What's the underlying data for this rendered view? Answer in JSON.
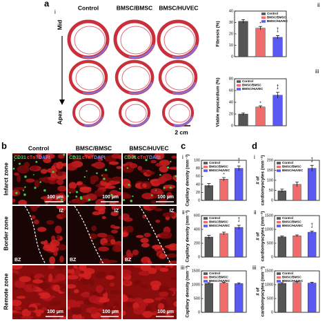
{
  "figure": {
    "panel_a": {
      "label": "a",
      "sublabel": "i",
      "columns": [
        "Control",
        "BMSC/BMSC",
        "BMSC/HUVEC"
      ],
      "axis_top": "Mid",
      "axis_bottom": "Apex",
      "scale_bar": "2 cm"
    },
    "panel_b": {
      "label": "b",
      "columns": [
        "Control",
        "BMSC/BMSC",
        "BMSC/HUVEC"
      ],
      "rows": [
        "Infarct zone",
        "Border zone",
        "Remote zone"
      ],
      "stain": [
        "CD31",
        "cTnT",
        "DAPI"
      ],
      "scale_bar": "100 µm",
      "zones": [
        "IZ",
        "BZ"
      ]
    },
    "panel_c": {
      "label": "c"
    },
    "panel_d": {
      "label": "d"
    }
  },
  "chart_data": [
    {
      "type": "bar",
      "panel": "ii",
      "y_label": [
        "Fibrosis (%)"
      ],
      "categories": [
        "Control",
        "BMSC/BMSC",
        "BMSC/HUVEC"
      ],
      "colors": [
        "#555555",
        "#f26b6b",
        "#5a5af2"
      ],
      "values": [
        31,
        25,
        17
      ],
      "errors": [
        1.5,
        1.5,
        1.5
      ],
      "significance": [
        null,
        [
          "*"
        ],
        [
          "†",
          "*"
        ]
      ],
      "ylim": [
        0,
        40
      ],
      "yticks": [
        0,
        10,
        20,
        30,
        40
      ]
    },
    {
      "type": "bar",
      "panel": "iii",
      "y_label": [
        "Viable myocardium (%)"
      ],
      "categories": [
        "Control",
        "BMSC/BMSC",
        "BMSC/HUVEC"
      ],
      "colors": [
        "#555555",
        "#f26b6b",
        "#5a5af2"
      ],
      "values": [
        20,
        32,
        52
      ],
      "errors": [
        2,
        2,
        5
      ],
      "significance": [
        null,
        [
          "*"
        ],
        [
          "†",
          "*"
        ]
      ],
      "ylim": [
        0,
        80
      ],
      "yticks": [
        0,
        20,
        40,
        60,
        80
      ]
    },
    {
      "type": "bar",
      "panel": "i",
      "y_label": [
        "Capillary density (mm⁻²)"
      ],
      "categories": [
        "Control",
        "BMSC/BMSC",
        "BMSC/HUVEC"
      ],
      "colors": [
        "#555555",
        "#f26b6b",
        "#5a5af2"
      ],
      "values": [
        37,
        53,
        80
      ],
      "errors": [
        5,
        4,
        6
      ],
      "significance": [
        null,
        [
          "*"
        ],
        [
          "†",
          "*"
        ]
      ],
      "ylim": [
        0,
        100
      ],
      "yticks": [
        0,
        20,
        40,
        60,
        80,
        100
      ]
    },
    {
      "type": "bar",
      "panel": "ii",
      "y_label": [
        "Capillary density (mm⁻²)"
      ],
      "categories": [
        "Control",
        "BMSC/BMSC",
        "BMSC/HUVEC"
      ],
      "colors": [
        "#555555",
        "#f26b6b",
        "#5a5af2"
      ],
      "values": [
        290,
        340,
        430
      ],
      "errors": [
        25,
        20,
        30
      ],
      "significance": [
        null,
        null,
        [
          "†",
          "*"
        ]
      ],
      "ylim": [
        0,
        600
      ],
      "yticks": [
        0,
        200,
        400,
        600
      ]
    },
    {
      "type": "bar",
      "panel": "iii",
      "y_label": [
        "Capillary density (mm⁻²)"
      ],
      "categories": [
        "Control",
        "BMSC/BMSC",
        "BMSC/HUVEC"
      ],
      "colors": [
        "#555555",
        "#f26b6b",
        "#5a5af2"
      ],
      "values": [
        1050,
        1060,
        1040
      ],
      "errors": [
        30,
        25,
        30
      ],
      "significance": [
        null,
        null,
        null
      ],
      "ylim": [
        0,
        1500
      ],
      "yticks": [
        0,
        500,
        1000,
        1500
      ]
    },
    {
      "type": "bar",
      "panel": "i",
      "y_label": [
        "# of",
        "cardiomyocytes (mm⁻²)"
      ],
      "categories": [
        "Control",
        "BMSC/BMSC",
        "BMSC/HUVEC"
      ],
      "colors": [
        "#555555",
        "#f26b6b",
        "#5a5af2"
      ],
      "values": [
        48,
        80,
        160
      ],
      "errors": [
        8,
        12,
        15
      ],
      "significance": [
        null,
        null,
        [
          "†",
          "*"
        ]
      ],
      "ylim": [
        0,
        200
      ],
      "yticks": [
        0,
        50,
        100,
        150,
        200
      ]
    },
    {
      "type": "bar",
      "panel": "ii",
      "y_label": [
        "# of",
        "cardiomyocytes (mm⁻²)"
      ],
      "categories": [
        "Control",
        "BMSC/BMSC",
        "BMSC/HUVEC"
      ],
      "colors": [
        "#555555",
        "#f26b6b",
        "#5a5af2"
      ],
      "values": [
        730,
        770,
        900
      ],
      "errors": [
        30,
        30,
        40
      ],
      "significance": [
        null,
        null,
        [
          "†",
          "*"
        ]
      ],
      "ylim": [
        0,
        1500
      ],
      "yticks": [
        0,
        500,
        1000,
        1500
      ]
    },
    {
      "type": "bar",
      "panel": "iii",
      "y_label": [
        "# of",
        "cardiomyocytes (mm⁻²)"
      ],
      "categories": [
        "Control",
        "BMSC/BMSC",
        "BMSC/HUVEC"
      ],
      "colors": [
        "#555555",
        "#f26b6b",
        "#5a5af2"
      ],
      "values": [
        1050,
        1080,
        1060
      ],
      "errors": [
        30,
        30,
        30
      ],
      "significance": [
        null,
        null,
        null
      ],
      "ylim": [
        0,
        1500
      ],
      "yticks": [
        0,
        500,
        1000,
        1500
      ]
    }
  ]
}
